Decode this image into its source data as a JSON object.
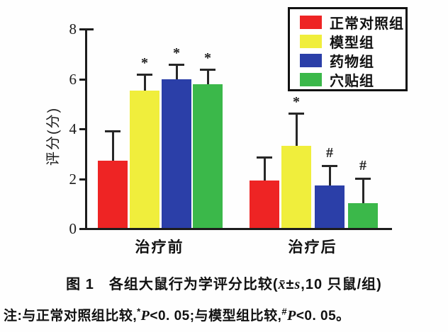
{
  "figure": {
    "caption": {
      "part1": "图 1　各组大鼠行为学评分比较(",
      "xbar": "x̄",
      "plusminus": "±",
      "s": "s",
      "part2": ",10 只鼠/组)"
    },
    "note": {
      "prefix": "注:与正常对照组比较,",
      "star": "*",
      "p1": "P",
      "mid": "<0. 05;与模型组比较,",
      "hash": "#",
      "p2": "P",
      "suffix": "<0. 05。"
    }
  },
  "chart_data": {
    "type": "bar",
    "title": "",
    "xlabel": "",
    "ylabel": "评分(分)",
    "ylim": [
      0,
      8
    ],
    "yticks": [
      0,
      2,
      4,
      6,
      8
    ],
    "grid": false,
    "legend_position": "top-right",
    "categories": [
      "治疗前",
      "治疗后"
    ],
    "series": [
      {
        "name": "正常对照组",
        "color": "#ee2424",
        "values": [
          2.7,
          1.9
        ],
        "errors": [
          1.2,
          0.95
        ],
        "markers": [
          "",
          ""
        ]
      },
      {
        "name": "模型组",
        "color": "#f0ee3c",
        "values": [
          5.5,
          3.3
        ],
        "errors": [
          0.65,
          1.3
        ],
        "markers": [
          "*",
          "*"
        ]
      },
      {
        "name": "药物组",
        "color": "#2b3fa8",
        "values": [
          5.95,
          1.7
        ],
        "errors": [
          0.6,
          0.8
        ],
        "markers": [
          "*",
          "#"
        ]
      },
      {
        "name": "穴贴组",
        "color": "#3bb84a",
        "values": [
          5.75,
          1.0
        ],
        "errors": [
          0.6,
          1.0
        ],
        "markers": [
          "*",
          "#"
        ]
      }
    ]
  }
}
